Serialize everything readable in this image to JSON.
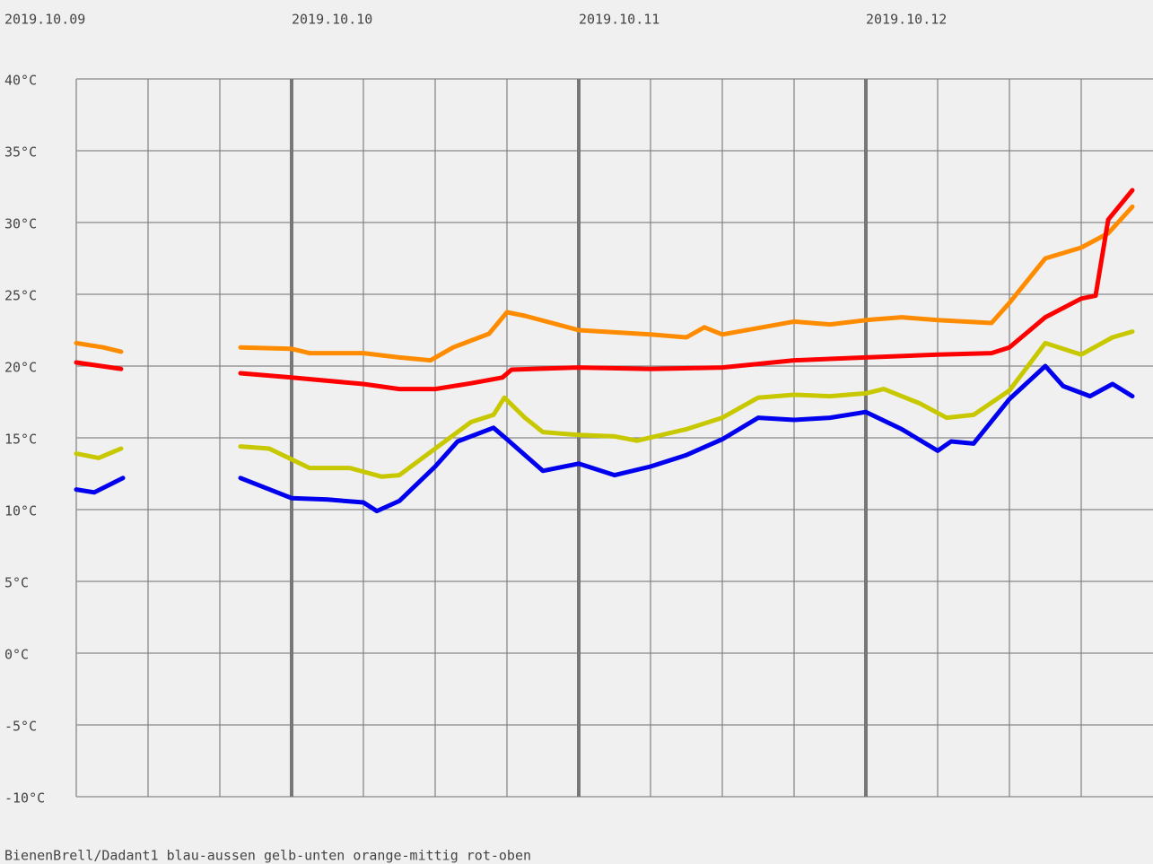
{
  "chart_data": {
    "type": "line",
    "footer": "BienenBrell/Dadant1 blau-aussen gelb-unten orange-mittig rot-oben",
    "xlim": [
      0.25,
      4
    ],
    "xticks": [
      {
        "value": 0,
        "label": "2019.10.09"
      },
      {
        "value": 1,
        "label": "2019.10.10"
      },
      {
        "value": 2,
        "label": "2019.10.11"
      },
      {
        "value": 3,
        "label": "2019.10.12"
      }
    ],
    "xminorticks": [
      0.25,
      0.5,
      0.75,
      1.25,
      1.5,
      1.75,
      2.25,
      2.5,
      2.75,
      3.25,
      3.5,
      3.75
    ],
    "ylim": [
      -10,
      40
    ],
    "yticks": [
      {
        "value": -10,
        "label": "-10°C"
      },
      {
        "value": -5,
        "label": "-5°C"
      },
      {
        "value": 0,
        "label": "0°C"
      },
      {
        "value": 5,
        "label": "5°C"
      },
      {
        "value": 10,
        "label": "10°C"
      },
      {
        "value": 15,
        "label": "15°C"
      },
      {
        "value": 20,
        "label": "20°C"
      },
      {
        "value": 25,
        "label": "25°C"
      },
      {
        "value": 30,
        "label": "30°C"
      },
      {
        "value": 35,
        "label": "35°C"
      },
      {
        "value": 40,
        "label": "40°C"
      }
    ],
    "grid": true,
    "series": [
      {
        "name": "blau-aussen",
        "color": "#0000ee",
        "x": [
          0.25,
          0.3125,
          0.4125,
          0.6,
          0.822,
          1.0,
          1.125,
          1.25,
          1.297,
          1.375,
          1.5,
          1.578,
          1.703,
          1.75,
          1.875,
          2.0,
          2.125,
          2.25,
          2.375,
          2.5,
          2.625,
          2.75,
          2.875,
          3.0,
          3.125,
          3.25,
          3.297,
          3.375,
          3.5,
          3.625,
          3.6875,
          3.781,
          3.859,
          3.928
        ],
        "values": [
          11.4,
          11.2,
          12.2,
          null,
          12.2,
          10.8,
          10.7,
          10.5,
          9.9,
          10.6,
          13,
          14.75,
          15.7,
          14.9,
          12.7,
          13.2,
          12.4,
          13,
          13.8,
          14.9,
          16.4,
          16.25,
          16.4,
          16.8,
          15.6,
          14.1,
          14.75,
          14.6,
          17.7,
          20,
          18.6,
          17.9,
          18.75,
          17.9
        ]
      },
      {
        "name": "gelb-unten",
        "color": "#c8c800",
        "x": [
          0.25,
          0.328,
          0.406,
          0.6,
          0.822,
          0.922,
          1.0625,
          1.203,
          1.3125,
          1.375,
          1.5,
          1.625,
          1.703,
          1.741,
          1.8125,
          1.875,
          2.0,
          2.125,
          2.203,
          2.375,
          2.5,
          2.625,
          2.75,
          2.875,
          3.0,
          3.0625,
          3.1875,
          3.281,
          3.375,
          3.5,
          3.625,
          3.75,
          3.859,
          3.928
        ],
        "values": [
          13.9,
          13.6,
          14.25,
          null,
          14.4,
          14.25,
          12.9,
          12.9,
          12.3,
          12.4,
          14.25,
          16.1,
          16.6,
          17.8,
          16.4,
          15.4,
          15.2,
          15.1,
          14.8,
          15.6,
          16.4,
          17.8,
          18,
          17.9,
          18.1,
          18.4,
          17.4,
          16.4,
          16.6,
          18.3,
          21.6,
          20.8,
          22,
          22.4
        ]
      },
      {
        "name": "orange-mittig",
        "color": "#ff8c00",
        "x": [
          0.25,
          0.344,
          0.406,
          0.6,
          0.822,
          1.0,
          1.0625,
          1.25,
          1.375,
          1.484,
          1.5625,
          1.6875,
          1.75,
          1.8125,
          2.0,
          2.25,
          2.375,
          2.4375,
          2.5,
          2.75,
          2.875,
          3.0,
          3.125,
          3.25,
          3.4375,
          3.5,
          3.625,
          3.75,
          3.844,
          3.928
        ],
        "values": [
          21.6,
          21.3,
          21,
          null,
          21.3,
          21.2,
          20.9,
          20.9,
          20.6,
          20.4,
          21.3,
          22.25,
          23.75,
          23.5,
          22.5,
          22.2,
          22,
          22.7,
          22.2,
          23.1,
          22.9,
          23.2,
          23.4,
          23.2,
          23,
          24.4,
          27.5,
          28.25,
          29.25,
          31.1
        ]
      },
      {
        "name": "rot-oben",
        "color": "#ff0000",
        "x": [
          0.25,
          0.406,
          0.6,
          0.822,
          1.0,
          1.25,
          1.375,
          1.5,
          1.625,
          1.734,
          1.766,
          2.0,
          2.25,
          2.5,
          2.75,
          3.0,
          3.25,
          3.4375,
          3.5,
          3.625,
          3.75,
          3.8,
          3.844,
          3.928
        ],
        "values": [
          20.25,
          19.8,
          null,
          19.5,
          19.2,
          18.75,
          18.4,
          18.4,
          18.8,
          19.2,
          19.75,
          19.9,
          19.8,
          19.9,
          20.4,
          20.6,
          20.8,
          20.9,
          21.3,
          23.4,
          24.7,
          24.9,
          30.2,
          32.25
        ]
      }
    ]
  }
}
